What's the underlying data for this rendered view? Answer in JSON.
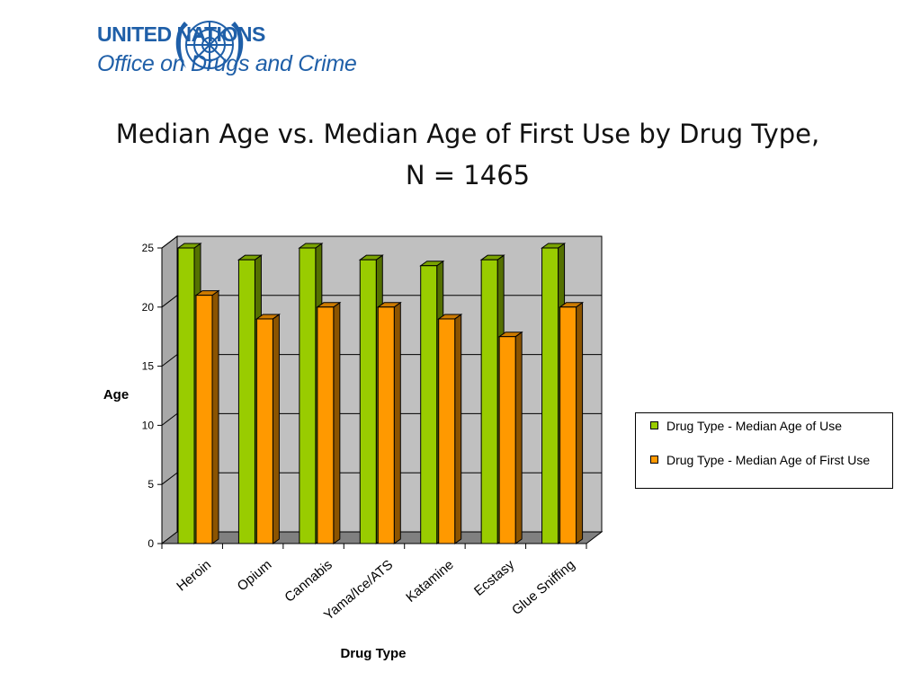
{
  "header": {
    "org_line1": "UNITED NATIONS",
    "org_line2": "Office on Drugs and Crime"
  },
  "chart_data": {
    "type": "bar",
    "title": "Median Age vs. Median Age of First Use by Drug Type, N = 1465",
    "xlabel": "Drug Type",
    "ylabel": "Age",
    "categories": [
      "Heroin",
      "Opium",
      "Cannabis",
      "Yama/Ice/ATS",
      "Katamine",
      "Ecstasy",
      "Glue Sniffing"
    ],
    "series": [
      {
        "name": "Drug Type - Median Age of Use",
        "values": [
          25,
          24,
          25,
          24,
          23.5,
          24,
          25
        ],
        "color": "#99cc00"
      },
      {
        "name": "Drug Type - Median Age of First Use",
        "values": [
          21,
          19,
          20,
          20,
          19,
          17.5,
          20
        ],
        "color": "#ff9900"
      }
    ],
    "ylim": [
      0,
      25
    ],
    "yticks": [
      0,
      5,
      10,
      15,
      20,
      25
    ],
    "grid": true,
    "legend": "right",
    "wall_color": "#c0c0c0"
  }
}
